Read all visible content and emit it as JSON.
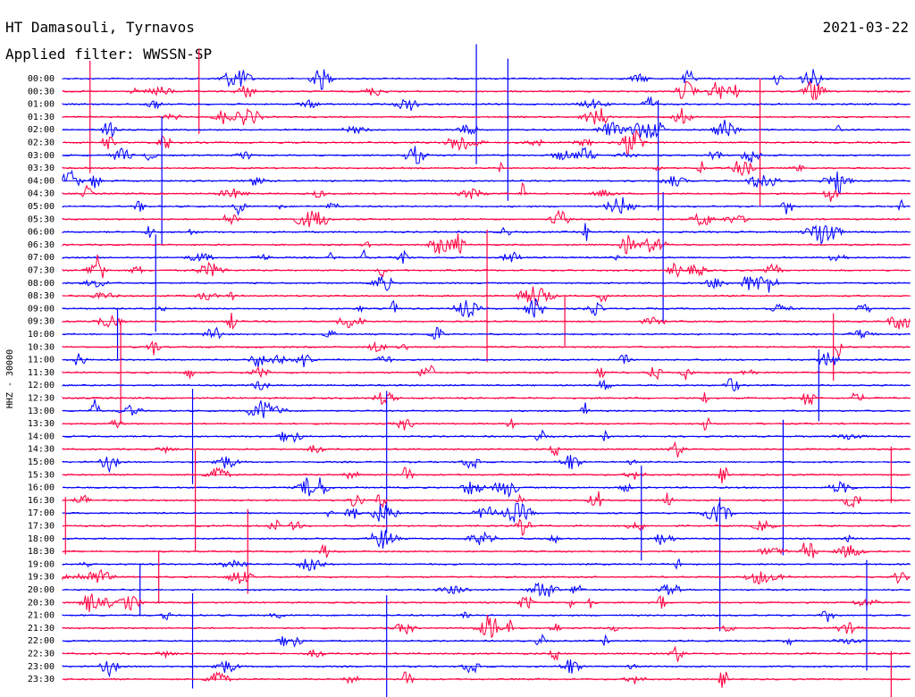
{
  "header": {
    "station": "HT Damasouli, Tyrnavos",
    "filter": "Applied filter: WWSSN-SP",
    "date": "2021-03-22"
  },
  "colors": {
    "even": "#0000ff",
    "odd": "#ff0040",
    "text": "#000000",
    "background": "#ffffff"
  },
  "chart_data": {
    "type": "line",
    "title": "HT Damasouli, Tyrnavos",
    "subtitle": "Applied filter: WWSSN-SP",
    "date": "2021-03-22",
    "ylabel": "HHZ - 30000",
    "trace_labels": [
      "00:00",
      "00:30",
      "01:00",
      "01:30",
      "02:00",
      "02:30",
      "03:00",
      "03:30",
      "04:00",
      "04:30",
      "05:00",
      "05:30",
      "06:00",
      "06:30",
      "07:00",
      "07:30",
      "08:00",
      "08:30",
      "09:00",
      "09:30",
      "10:00",
      "10:30",
      "11:00",
      "11:30",
      "12:00",
      "12:30",
      "13:00",
      "13:30",
      "14:00",
      "14:30",
      "15:00",
      "15:30",
      "16:00",
      "16:30",
      "17:00",
      "17:30",
      "18:00",
      "18:30",
      "19:00",
      "19:30",
      "20:00",
      "20:30",
      "21:00",
      "21:30",
      "22:00",
      "22:30",
      "23:00",
      "23:30"
    ],
    "trace_color_cycle": [
      "blue",
      "red"
    ]
  }
}
